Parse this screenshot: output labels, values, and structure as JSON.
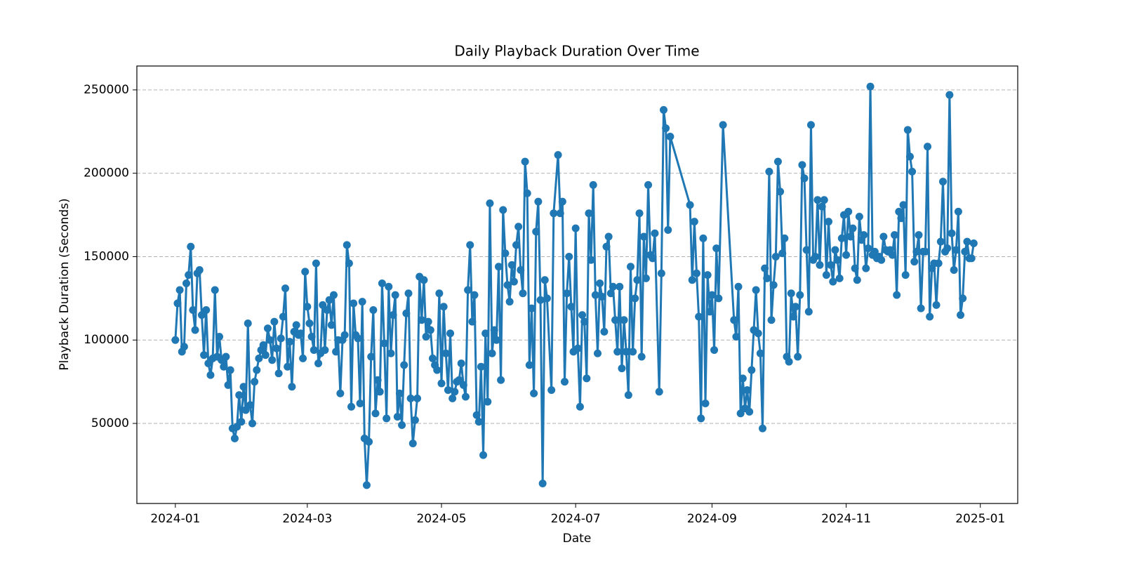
{
  "chart_data": {
    "type": "line",
    "title": "Daily Playback Duration Over Time",
    "x_label": "Date",
    "y_label": "Playback Duration (Seconds)",
    "color": "#1f77b4",
    "grid": true,
    "xlim": [
      -17.5,
      383
    ],
    "ylim": [
      2000,
      264300
    ],
    "xticks": [
      {
        "value": 0,
        "label": "2024-01"
      },
      {
        "value": 60,
        "label": "2024-03"
      },
      {
        "value": 121,
        "label": "2024-05"
      },
      {
        "value": 182,
        "label": "2024-07"
      },
      {
        "value": 244,
        "label": "2024-09"
      },
      {
        "value": 305,
        "label": "2024-11"
      },
      {
        "value": 366,
        "label": "2025-01"
      }
    ],
    "yticks": [
      50000,
      100000,
      150000,
      200000,
      250000
    ],
    "x": [
      0,
      1,
      2,
      3,
      4,
      5,
      6,
      7,
      8,
      9,
      10,
      11,
      12,
      13,
      14,
      15,
      16,
      17,
      18,
      19,
      20,
      21,
      22,
      23,
      24,
      25,
      26,
      27,
      28,
      29,
      30,
      31,
      32,
      33,
      34,
      35,
      36,
      37,
      38,
      39,
      40,
      41,
      42,
      43,
      44,
      45,
      46,
      47,
      48,
      49,
      50,
      51,
      52,
      53,
      54,
      55,
      56,
      57,
      58,
      59,
      60,
      61,
      62,
      63,
      64,
      65,
      66,
      67,
      68,
      69,
      70,
      71,
      72,
      73,
      74,
      75,
      76,
      77,
      78,
      79,
      80,
      81,
      82,
      83,
      84,
      85,
      86,
      87,
      88,
      89,
      90,
      91,
      92,
      93,
      94,
      95,
      96,
      97,
      98,
      99,
      100,
      101,
      102,
      103,
      104,
      105,
      106,
      107,
      108,
      109,
      110,
      111,
      112,
      113,
      114,
      115,
      116,
      117,
      118,
      119,
      120,
      121,
      122,
      123,
      124,
      125,
      126,
      127,
      128,
      129,
      130,
      131,
      132,
      133,
      134,
      135,
      136,
      137,
      138,
      139,
      140,
      141,
      142,
      143,
      144,
      145,
      146,
      147,
      148,
      149,
      150,
      151,
      152,
      153,
      154,
      155,
      156,
      157,
      158,
      159,
      160,
      161,
      162,
      163,
      164,
      165,
      166,
      167,
      168,
      169,
      171,
      172,
      174,
      175,
      176,
      177,
      178,
      179,
      180,
      181,
      182,
      183,
      184,
      185,
      186,
      187,
      188,
      189,
      190,
      191,
      192,
      193,
      194,
      195,
      196,
      197,
      198,
      199,
      200,
      201,
      202,
      203,
      204,
      205,
      206,
      207,
      208,
      209,
      210,
      211,
      212,
      213,
      214,
      215,
      216,
      217,
      218,
      220,
      221,
      222,
      223,
      224,
      225,
      234,
      235,
      236,
      237,
      238,
      239,
      240,
      241,
      242,
      243,
      244,
      245,
      246,
      247,
      249,
      254,
      255,
      256,
      257,
      258,
      259,
      260,
      261,
      262,
      263,
      264,
      265,
      266,
      267,
      268,
      269,
      270,
      271,
      272,
      273,
      274,
      275,
      276,
      277,
      278,
      279,
      280,
      281,
      282,
      283,
      284,
      285,
      286,
      287,
      288,
      289,
      290,
      291,
      292,
      293,
      294,
      295,
      296,
      297,
      298,
      299,
      300,
      301,
      302,
      303,
      304,
      305,
      306,
      307,
      308,
      309,
      310,
      311,
      312,
      313,
      314,
      315,
      316,
      317,
      318,
      319,
      320,
      321,
      322,
      323,
      324,
      325,
      326,
      327,
      328,
      329,
      330,
      331,
      332,
      333,
      334,
      335,
      336,
      337,
      338,
      339,
      340,
      341,
      342,
      343,
      344,
      345,
      346,
      347,
      348,
      349,
      350,
      351,
      352,
      353,
      354,
      355,
      356,
      357,
      358,
      359,
      360,
      361,
      362,
      363
    ],
    "values": [
      100000,
      122000,
      130000,
      93000,
      96000,
      134000,
      139000,
      156000,
      118000,
      106000,
      140000,
      142000,
      115000,
      91000,
      118000,
      86000,
      79000,
      89000,
      130000,
      90000,
      102000,
      88000,
      84000,
      90000,
      73000,
      82000,
      47000,
      41000,
      48000,
      67000,
      51000,
      72000,
      58000,
      110000,
      61000,
      50000,
      75000,
      82000,
      89000,
      94000,
      97000,
      91000,
      107000,
      100000,
      88000,
      111000,
      95000,
      80000,
      101000,
      114000,
      131000,
      84000,
      99000,
      72000,
      105000,
      109000,
      103000,
      104000,
      89000,
      141000,
      120000,
      110000,
      102000,
      94000,
      146000,
      86000,
      92000,
      121000,
      94000,
      118000,
      124000,
      109000,
      127000,
      93000,
      100000,
      68000,
      100000,
      103000,
      157000,
      146000,
      60000,
      122000,
      103000,
      101000,
      62000,
      123000,
      41000,
      13000,
      39000,
      90000,
      118000,
      56000,
      76000,
      69000,
      134000,
      98000,
      53000,
      132000,
      92000,
      115000,
      127000,
      54000,
      68000,
      49000,
      85000,
      116000,
      128000,
      65000,
      38000,
      52000,
      65000,
      138000,
      112000,
      136000,
      102000,
      111000,
      106000,
      89000,
      85000,
      82000,
      128000,
      74000,
      120000,
      92000,
      70000,
      104000,
      65000,
      69000,
      75000,
      76000,
      86000,
      73000,
      66000,
      130000,
      157000,
      111000,
      127000,
      55000,
      51000,
      84000,
      31000,
      104000,
      63000,
      182000,
      92000,
      106000,
      100000,
      144000,
      76000,
      178000,
      152000,
      133000,
      123000,
      145000,
      135000,
      157000,
      168000,
      142000,
      128000,
      207000,
      188000,
      85000,
      119000,
      68000,
      165000,
      183000,
      124000,
      14000,
      136000,
      125000,
      70000,
      176000,
      211000,
      176000,
      183000,
      75000,
      128000,
      150000,
      120000,
      93000,
      167000,
      95000,
      60000,
      115000,
      111000,
      77000,
      176000,
      148000,
      193000,
      127000,
      92000,
      134000,
      126000,
      105000,
      156000,
      162000,
      128000,
      132000,
      112000,
      93000,
      132000,
      83000,
      112000,
      93000,
      67000,
      144000,
      93000,
      125000,
      136000,
      176000,
      90000,
      162000,
      137000,
      193000,
      151000,
      149000,
      164000,
      69000,
      140000,
      238000,
      227000,
      166000,
      222000,
      181000,
      136000,
      171000,
      140000,
      114000,
      53000,
      161000,
      62000,
      139000,
      117000,
      127000,
      94000,
      155000,
      125000,
      229000,
      112000,
      102000,
      132000,
      56000,
      77000,
      59000,
      70000,
      57000,
      82000,
      106000,
      130000,
      104000,
      92000,
      47000,
      143000,
      137000,
      201000,
      112000,
      133000,
      150000,
      207000,
      189000,
      152000,
      161000,
      90000,
      87000,
      128000,
      114000,
      120000,
      90000,
      127000,
      205000,
      197000,
      154000,
      117000,
      229000,
      148000,
      150000,
      184000,
      145000,
      180000,
      184000,
      139000,
      171000,
      145000,
      135000,
      154000,
      148000,
      137000,
      161000,
      175000,
      151000,
      177000,
      162000,
      167000,
      143000,
      136000,
      174000,
      160000,
      163000,
      143000,
      155000,
      252000,
      151000,
      153000,
      149000,
      150000,
      148000,
      162000,
      154000,
      153000,
      154000,
      151000,
      163000,
      127000,
      177000,
      173000,
      181000,
      139000,
      226000,
      210000,
      201000,
      147000,
      153000,
      163000,
      119000,
      153000,
      153000,
      216000,
      114000,
      143000,
      146000,
      121000,
      146000,
      159000,
      195000,
      153000,
      155000,
      247000,
      164000,
      142000,
      154000,
      177000,
      115000,
      125000,
      153000,
      159000,
      149000,
      149000,
      158000
    ]
  }
}
